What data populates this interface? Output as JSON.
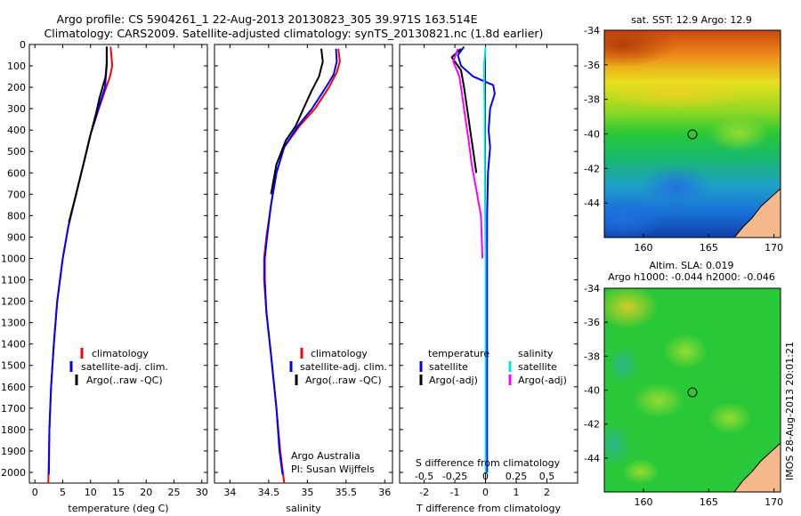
{
  "header": {
    "line1": "Argo profile: CS 5904261_1 22-Aug-2013 20130823_305 39.971S 163.514E",
    "line2": "Climatology: CARS2009. Satellite-adjusted climatology: synTS_20130821.nc (1.8d earlier)"
  },
  "colors": {
    "climatology": "#ff0000",
    "satellite": "#0000ff",
    "argo": "#000000",
    "satellite_sal": "#00e5e5",
    "argo_sal": "#ff00ff",
    "land": "#f5b98c"
  },
  "depth_axis": {
    "ylim": [
      0,
      2050
    ],
    "ticks": [
      0,
      100,
      200,
      300,
      400,
      500,
      600,
      700,
      800,
      900,
      1000,
      1100,
      1200,
      1300,
      1400,
      1500,
      1600,
      1700,
      1800,
      1900,
      2000
    ]
  },
  "legend": {
    "climatology": "climatology",
    "satellite_clim": "satellite-adj. clim.",
    "argo_raw": "Argo(..raw -QC)"
  },
  "diff_legend": {
    "temperature": "temperature",
    "salinity": "salinity",
    "satellite": "satellite",
    "argo_adj": "Argo(-adj)"
  },
  "credit": {
    "line1": "Argo Australia",
    "line2": "PI: Susan Wijffels"
  },
  "sst_map": {
    "title": "sat. SST: 12.9 Argo: 12.9"
  },
  "sla_map": {
    "title1": "Altim. SLA: 0.019",
    "title2": "Argo h1000: -0.044 h2000: -0.046"
  },
  "map_axes": {
    "xticks": [
      "160",
      "165",
      "170"
    ],
    "yticks": [
      "-34",
      "-36",
      "-38",
      "-40",
      "-42",
      "-44"
    ]
  },
  "side_text": "IMOS 28-Aug-2013 20:01:21",
  "chart_data": [
    {
      "type": "line",
      "panel": "temperature",
      "xlabel": "temperature (deg C)",
      "ylabel": "",
      "xlim": [
        -1,
        31
      ],
      "xticks": [
        0,
        5,
        10,
        15,
        20,
        25,
        30
      ],
      "series": [
        {
          "name": "climatology",
          "color": "#ff0000",
          "points": [
            [
              13.6,
              10
            ],
            [
              13.9,
              100
            ],
            [
              13.5,
              150
            ],
            [
              12.8,
              200
            ],
            [
              11.5,
              300
            ],
            [
              10.0,
              420
            ],
            [
              8.8,
              550
            ],
            [
              7.4,
              700
            ],
            [
              6.0,
              850
            ],
            [
              5.0,
              1000
            ],
            [
              4.0,
              1200
            ],
            [
              3.4,
              1400
            ],
            [
              2.9,
              1600
            ],
            [
              2.6,
              1800
            ],
            [
              2.4,
              2050
            ]
          ]
        },
        {
          "name": "satellite-adj. clim.",
          "color": "#0000ff",
          "points": [
            [
              12.9,
              10
            ],
            [
              12.9,
              100
            ],
            [
              12.6,
              200
            ],
            [
              11.4,
              300
            ],
            [
              10.0,
              420
            ],
            [
              8.8,
              550
            ],
            [
              7.4,
              700
            ],
            [
              6.0,
              850
            ],
            [
              5.0,
              1000
            ],
            [
              4.0,
              1200
            ],
            [
              3.4,
              1400
            ],
            [
              2.9,
              1600
            ],
            [
              2.6,
              1800
            ],
            [
              2.5,
              2010
            ]
          ]
        },
        {
          "name": "Argo(..raw -QC)",
          "color": "#000000",
          "points": [
            [
              12.9,
              10
            ],
            [
              12.9,
              90
            ],
            [
              12.7,
              150
            ],
            [
              11.6,
              250
            ],
            [
              11.0,
              320
            ],
            [
              10.0,
              420
            ],
            [
              8.8,
              550
            ],
            [
              7.4,
              700
            ],
            [
              6.1,
              830
            ]
          ]
        }
      ]
    },
    {
      "type": "line",
      "panel": "salinity",
      "xlabel": "salinity",
      "ylabel": "",
      "xlim": [
        33.8,
        36.1
      ],
      "xticks": [
        "34",
        "34.5",
        "35",
        "35.5",
        "36"
      ],
      "series": [
        {
          "name": "climatology",
          "color": "#ff0000",
          "points": [
            [
              35.4,
              20
            ],
            [
              35.42,
              80
            ],
            [
              35.38,
              130
            ],
            [
              35.28,
              200
            ],
            [
              35.1,
              300
            ],
            [
              34.9,
              380
            ],
            [
              34.7,
              480
            ],
            [
              34.6,
              600
            ],
            [
              34.53,
              750
            ],
            [
              34.47,
              900
            ],
            [
              34.44,
              1000
            ],
            [
              34.44,
              1100
            ],
            [
              34.47,
              1250
            ],
            [
              34.53,
              1450
            ],
            [
              34.6,
              1700
            ],
            [
              34.65,
              1900
            ],
            [
              34.7,
              2050
            ]
          ]
        },
        {
          "name": "satellite-adj. clim.",
          "color": "#0000ff",
          "points": [
            [
              35.37,
              20
            ],
            [
              35.38,
              80
            ],
            [
              35.34,
              140
            ],
            [
              35.24,
              200
            ],
            [
              35.06,
              300
            ],
            [
              34.88,
              380
            ],
            [
              34.7,
              480
            ],
            [
              34.6,
              600
            ],
            [
              34.53,
              750
            ],
            [
              34.48,
              900
            ],
            [
              34.45,
              1000
            ],
            [
              34.45,
              1100
            ],
            [
              34.47,
              1250
            ],
            [
              34.53,
              1450
            ],
            [
              34.6,
              1700
            ],
            [
              34.64,
              1900
            ],
            [
              34.68,
              2010
            ]
          ]
        },
        {
          "name": "Argo(..raw -QC)",
          "color": "#000000",
          "points": [
            [
              35.18,
              20
            ],
            [
              35.2,
              80
            ],
            [
              35.15,
              150
            ],
            [
              35.05,
              220
            ],
            [
              34.95,
              300
            ],
            [
              34.85,
              380
            ],
            [
              34.72,
              450
            ],
            [
              34.6,
              560
            ],
            [
              34.53,
              700
            ]
          ]
        }
      ]
    },
    {
      "type": "line",
      "panel": "difference",
      "xlabel": "T difference from climatology",
      "x2label": "S difference from climatology",
      "xlim": [
        -2.8,
        3.0
      ],
      "xticks": [
        "-2",
        "-1",
        "0",
        "1",
        "2"
      ],
      "x2ticks": [
        "-0.5",
        "-0.25",
        "0",
        "0.25",
        "0.5"
      ],
      "series": [
        {
          "name": "temperature satellite",
          "color": "#0000ff",
          "points": [
            [
              -0.7,
              10
            ],
            [
              -0.9,
              50
            ],
            [
              -0.8,
              100
            ],
            [
              -0.4,
              150
            ],
            [
              0.25,
              190
            ],
            [
              0.3,
              230
            ],
            [
              0.15,
              300
            ],
            [
              0.1,
              400
            ],
            [
              0.15,
              480
            ],
            [
              0.08,
              600
            ],
            [
              0.05,
              800
            ],
            [
              0.05,
              1000
            ],
            [
              0.05,
              1300
            ],
            [
              0.05,
              2000
            ]
          ]
        },
        {
          "name": "temperature Argo(-adj)",
          "color": "#000000",
          "points": [
            [
              -0.8,
              20
            ],
            [
              -1.1,
              60
            ],
            [
              -0.8,
              120
            ],
            [
              -0.7,
              200
            ],
            [
              -0.6,
              300
            ],
            [
              -0.5,
              400
            ],
            [
              -0.4,
              500
            ],
            [
              -0.3,
              600
            ]
          ]
        },
        {
          "name": "salinity satellite",
          "color": "#00e5e5",
          "points": [
            [
              0.0,
              10
            ],
            [
              -0.05,
              100
            ],
            [
              -0.03,
              300
            ],
            [
              -0.02,
              700
            ],
            [
              0.0,
              1000
            ],
            [
              0.0,
              1500
            ],
            [
              0.0,
              2000
            ]
          ]
        },
        {
          "name": "salinity Argo(-adj)",
          "color": "#ff00ff",
          "points": [
            [
              -0.9,
              20
            ],
            [
              -1.05,
              80
            ],
            [
              -0.85,
              150
            ],
            [
              -0.75,
              250
            ],
            [
              -0.65,
              350
            ],
            [
              -0.55,
              450
            ],
            [
              -0.45,
              560
            ],
            [
              -0.3,
              680
            ],
            [
              -0.15,
              800
            ],
            [
              -0.1,
              1000
            ]
          ]
        }
      ]
    }
  ]
}
